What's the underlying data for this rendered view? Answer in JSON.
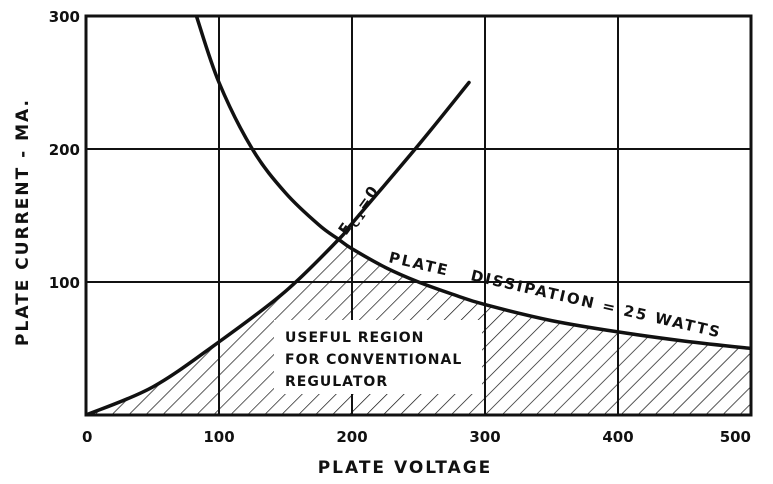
{
  "chart_data": {
    "type": "line",
    "title": "",
    "xlabel": "PLATE VOLTAGE",
    "ylabel": "PLATE CURRENT - MA.",
    "xlim": [
      0,
      500
    ],
    "ylim": [
      0,
      300
    ],
    "x_ticks": [
      "0",
      "100",
      "200",
      "300",
      "400",
      "500"
    ],
    "y_ticks": [
      "100",
      "200",
      "300"
    ],
    "x_tick_values": [
      0,
      100,
      200,
      300,
      400,
      500
    ],
    "y_tick_values": [
      100,
      200,
      300
    ],
    "grid": true,
    "series": [
      {
        "name": "PLATE DISSIPATION = 25 WATTS",
        "label_parts": [
          "PLATE",
          "DISSIPATION = 25 WATTS"
        ],
        "x": [
          83,
          100,
          125,
          150,
          175,
          190,
          200,
          225,
          250,
          275,
          300,
          350,
          400,
          450,
          500
        ],
        "y": [
          300,
          250,
          200,
          167,
          143,
          132,
          125,
          111,
          100,
          91,
          83,
          71,
          62.5,
          55.6,
          50
        ]
      },
      {
        "name": "Ec1 = 0",
        "label_main": "E",
        "label_sub": "C1",
        "label_rest": "=0",
        "x": [
          0,
          50,
          100,
          150,
          190,
          200,
          250,
          288
        ],
        "y": [
          0,
          21,
          55,
          93,
          132,
          144,
          203,
          250
        ]
      }
    ],
    "annotations": [
      {
        "line1": "USEFUL REGION",
        "line2": "FOR CONVENTIONAL",
        "line3": "REGULATOR"
      }
    ]
  }
}
